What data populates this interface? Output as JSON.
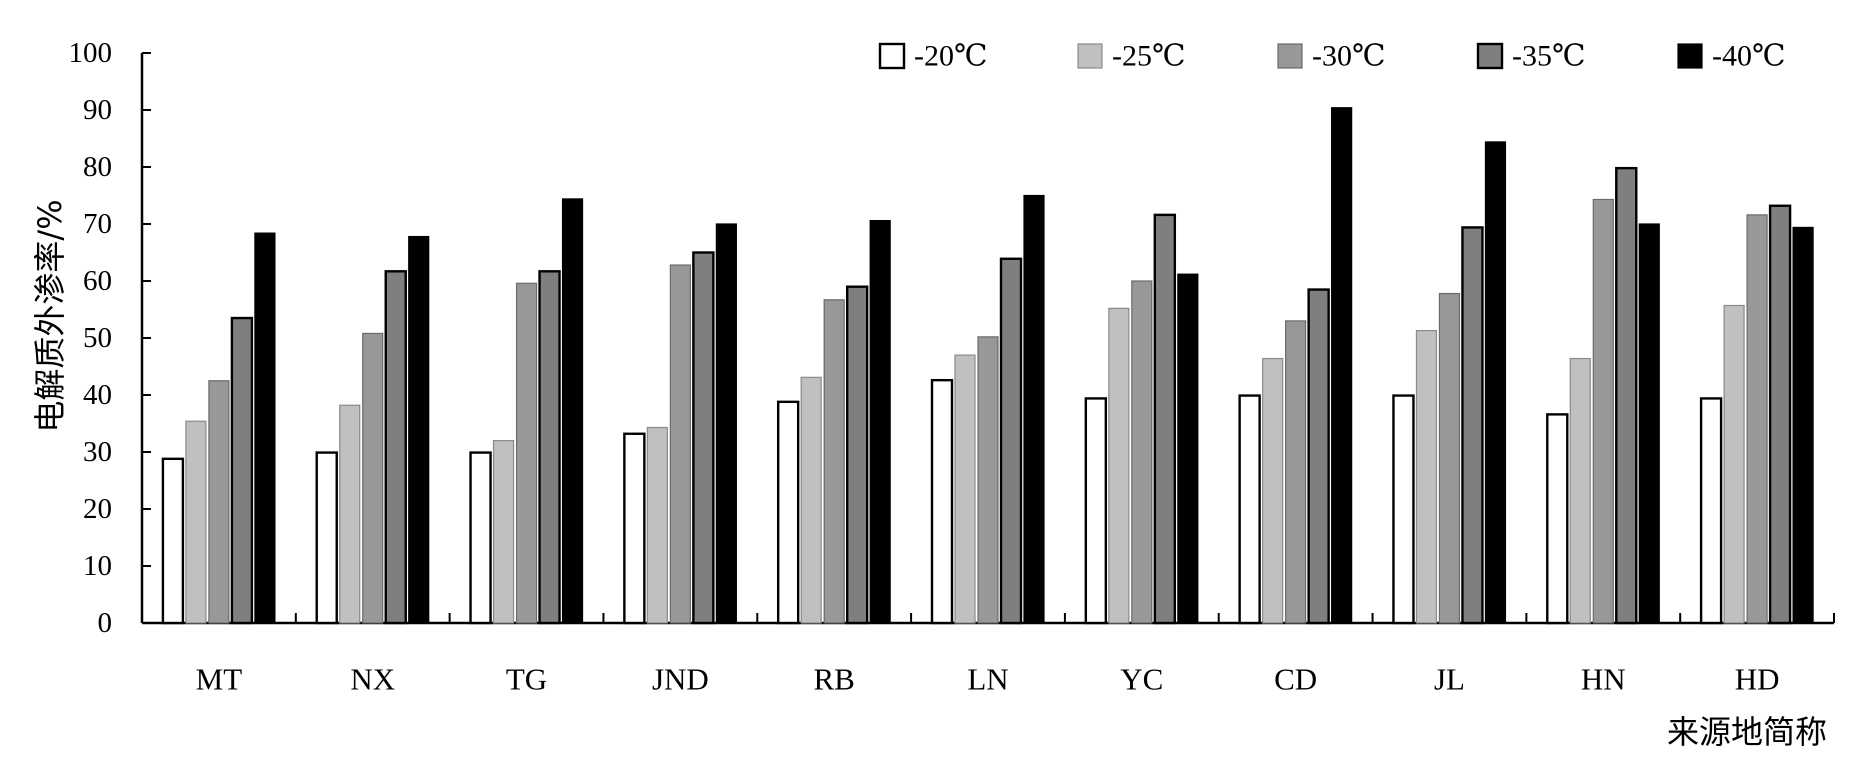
{
  "chart_data": {
    "type": "bar",
    "xlabel": "来源地简称",
    "ylabel": "电解质外渗率/%",
    "ylim": [
      0,
      100
    ],
    "yticks": [
      0,
      10,
      20,
      30,
      40,
      50,
      60,
      70,
      80,
      90,
      100
    ],
    "grid": false,
    "legend_position": "top-right",
    "categories": [
      "MT",
      "NX",
      "TG",
      "JND",
      "RB",
      "LN",
      "YC",
      "CD",
      "JL",
      "HN",
      "HD"
    ],
    "series": [
      {
        "name": "-20℃",
        "color": "#ffffff",
        "border": "#000000",
        "values": [
          28.8,
          29.9,
          29.9,
          33.2,
          38.8,
          42.6,
          39.4,
          39.9,
          39.9,
          36.6,
          39.4
        ]
      },
      {
        "name": "-25℃",
        "color": "#c0c0c0",
        "border": "#8a8a8a",
        "values": [
          35.4,
          38.2,
          32.0,
          34.3,
          43.1,
          47.0,
          55.2,
          46.4,
          51.3,
          46.4,
          55.7
        ]
      },
      {
        "name": "-30℃",
        "color": "#989898",
        "border": "#6a6a6a",
        "values": [
          42.5,
          50.8,
          59.6,
          62.8,
          56.7,
          50.2,
          60.0,
          53.0,
          57.8,
          74.3,
          71.6
        ]
      },
      {
        "name": "-35℃",
        "color": "#7f7f7f",
        "border": "#000000",
        "values": [
          53.5,
          61.7,
          61.7,
          65.0,
          59.0,
          63.9,
          71.6,
          58.5,
          69.4,
          79.8,
          73.2
        ]
      },
      {
        "name": "-40℃",
        "color": "#000000",
        "border": "#000000",
        "values": [
          68.4,
          67.8,
          74.4,
          70.0,
          70.6,
          75.0,
          61.2,
          90.4,
          84.4,
          70.0,
          69.4
        ]
      }
    ]
  }
}
